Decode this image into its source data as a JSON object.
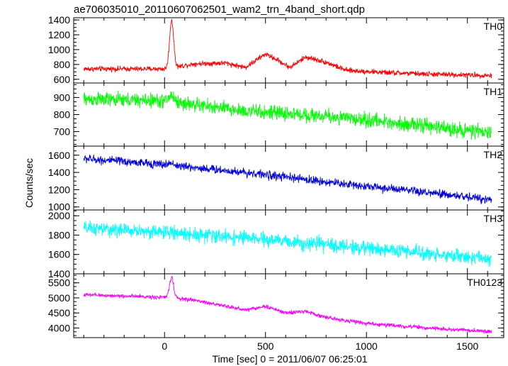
{
  "title": "ae706035010_20110607062501_wam2_trn_4band_short.qdp",
  "xlabel": "Time [sec] 0 = 2011/06/07 06:25:01",
  "ylabel": "Counts/sec",
  "chart_data": {
    "type": "line",
    "title": "ae706035010_20110607062501_wam2_trn_4band_short.qdp",
    "xlabel": "Time [sec] 0 = 2011/06/07 06:25:01",
    "ylabel": "Counts/sec",
    "xlim": [
      -450,
      1680
    ],
    "x_range_data": [
      -400,
      1620
    ],
    "xticks": [
      0,
      500,
      1000,
      1500
    ],
    "grid": false,
    "legend": "none",
    "panels": [
      {
        "name": "TH0",
        "color": "#ff0000",
        "ylim": [
          550,
          1430
        ],
        "yticks": [
          600,
          800,
          1000,
          1200,
          1400
        ],
        "noise": 32,
        "baseline": [
          [
            -400,
            740
          ],
          [
            0,
            740
          ],
          [
            150,
            810
          ],
          [
            300,
            820
          ],
          [
            400,
            760
          ],
          [
            500,
            940
          ],
          [
            560,
            860
          ],
          [
            620,
            760
          ],
          [
            700,
            900
          ],
          [
            800,
            830
          ],
          [
            900,
            720
          ],
          [
            1100,
            690
          ],
          [
            1300,
            670
          ],
          [
            1620,
            650
          ]
        ],
        "peaks": [
          {
            "x": 35,
            "height": 640,
            "width": 10
          }
        ]
      },
      {
        "name": "TH1",
        "color": "#00ff00",
        "ylim": [
          615,
          985
        ],
        "yticks": [
          700,
          800,
          900
        ],
        "noise": 38,
        "baseline": [
          [
            -400,
            890
          ],
          [
            0,
            880
          ],
          [
            400,
            820
          ],
          [
            800,
            790
          ],
          [
            1200,
            745
          ],
          [
            1620,
            690
          ]
        ],
        "peaks": [
          {
            "x": 35,
            "height": 40,
            "width": 12
          }
        ]
      },
      {
        "name": "TH2",
        "color": "#0000e0",
        "ylim": [
          965,
          1705
        ],
        "yticks": [
          1000,
          1200,
          1400,
          1600
        ],
        "noise": 45,
        "baseline": [
          [
            -400,
            1560
          ],
          [
            0,
            1490
          ],
          [
            400,
            1400
          ],
          [
            800,
            1290
          ],
          [
            1200,
            1190
          ],
          [
            1620,
            1085
          ]
        ],
        "peaks": [
          {
            "x": 35,
            "height": 30,
            "width": 12
          }
        ]
      },
      {
        "name": "TH3",
        "color": "#00ffff",
        "ylim": [
          1400,
          2060
        ],
        "yticks": [
          1400,
          1600,
          1800,
          2000
        ],
        "noise": 65,
        "baseline": [
          [
            -400,
            1870
          ],
          [
            0,
            1830
          ],
          [
            400,
            1770
          ],
          [
            800,
            1700
          ],
          [
            1200,
            1630
          ],
          [
            1620,
            1550
          ]
        ],
        "peaks": []
      },
      {
        "name": "TH0123",
        "color": "#ff00ff",
        "ylim": [
          3680,
          5800
        ],
        "yticks": [
          4000,
          4500,
          5000,
          5500
        ],
        "noise": 60,
        "baseline": [
          [
            -400,
            5100
          ],
          [
            0,
            5020
          ],
          [
            150,
            4920
          ],
          [
            400,
            4600
          ],
          [
            500,
            4720
          ],
          [
            600,
            4500
          ],
          [
            700,
            4550
          ],
          [
            800,
            4350
          ],
          [
            1000,
            4150
          ],
          [
            1300,
            4000
          ],
          [
            1620,
            3880
          ]
        ],
        "peaks": [
          {
            "x": 35,
            "height": 700,
            "width": 10
          }
        ]
      }
    ]
  }
}
